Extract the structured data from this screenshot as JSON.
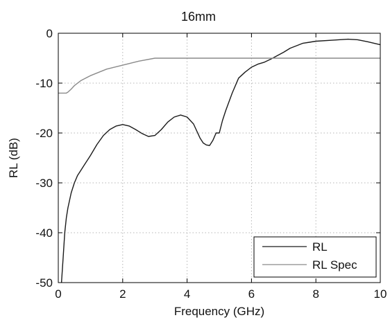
{
  "chart_data": {
    "type": "line",
    "title": "16mm",
    "xlabel": "Frequency (GHz)",
    "ylabel": "RL (dB)",
    "xlim": [
      0,
      10
    ],
    "ylim": [
      -50,
      0
    ],
    "xticks": [
      0,
      2,
      4,
      6,
      8,
      10
    ],
    "yticks": [
      0,
      -10,
      -20,
      -30,
      -40,
      -50
    ],
    "grid": true,
    "legend_position": "bottom-right",
    "series": [
      {
        "name": "RL",
        "color": "#1a1a1a",
        "x": [
          0.1,
          0.15,
          0.2,
          0.25,
          0.3,
          0.4,
          0.5,
          0.6,
          0.7,
          0.8,
          1.0,
          1.2,
          1.4,
          1.6,
          1.8,
          2.0,
          2.2,
          2.4,
          2.6,
          2.8,
          3.0,
          3.2,
          3.4,
          3.6,
          3.8,
          4.0,
          4.2,
          4.4,
          4.5,
          4.6,
          4.7,
          4.8,
          4.9,
          5.0,
          5.1,
          5.2,
          5.4,
          5.6,
          5.8,
          6.0,
          6.2,
          6.4,
          6.6,
          6.8,
          7.0,
          7.2,
          7.4,
          7.6,
          7.8,
          8.0,
          8.5,
          9.0,
          9.3,
          9.6,
          10.0
        ],
        "y": [
          -50,
          -45,
          -40,
          -37,
          -35,
          -32,
          -30,
          -28.5,
          -27.5,
          -26.5,
          -24.5,
          -22.3,
          -20.5,
          -19.3,
          -18.6,
          -18.3,
          -18.6,
          -19.3,
          -20.1,
          -20.7,
          -20.5,
          -19.3,
          -17.8,
          -16.8,
          -16.4,
          -16.8,
          -18.2,
          -21.0,
          -22.0,
          -22.4,
          -22.5,
          -21.5,
          -20.0,
          -20.0,
          -17.5,
          -15.5,
          -12.0,
          -9.0,
          -7.8,
          -6.8,
          -6.2,
          -5.8,
          -5.2,
          -4.5,
          -3.8,
          -3.0,
          -2.5,
          -2.0,
          -1.8,
          -1.6,
          -1.4,
          -1.2,
          -1.3,
          -1.7,
          -2.3
        ]
      },
      {
        "name": "RL Spec",
        "color": "#8a8a8a",
        "x": [
          0,
          0.25,
          0.3,
          0.4,
          0.5,
          0.7,
          1.0,
          1.5,
          2.0,
          2.5,
          3.0,
          4.0,
          5.0,
          6.0,
          7.0,
          8.0,
          9.0,
          10.0
        ],
        "y": [
          -12,
          -12,
          -11.8,
          -11.2,
          -10.5,
          -9.5,
          -8.5,
          -7.2,
          -6.4,
          -5.6,
          -5,
          -5,
          -5,
          -5,
          -5,
          -5,
          -5,
          -5
        ]
      }
    ]
  }
}
